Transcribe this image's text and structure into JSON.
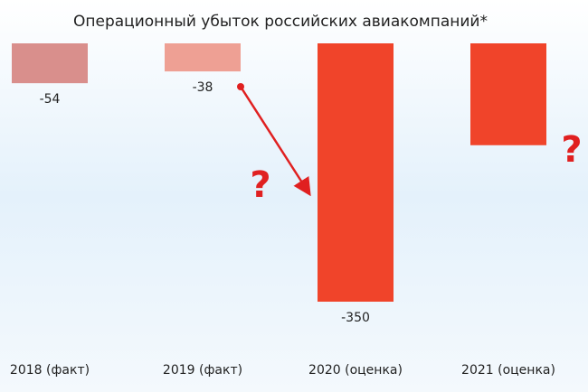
{
  "chart_data": {
    "type": "bar",
    "title": "Операционный убыток российских авиакомпаний*",
    "categories": [
      "2018 (факт)",
      "2019 (факт)",
      "2020 (оценка)",
      "2021 (оценка)"
    ],
    "values": [
      -54,
      -38,
      -350,
      -138
    ],
    "value_labels": [
      "-54",
      "-38",
      "-350",
      null
    ],
    "colors": [
      "#d98f8c",
      "#eea094",
      "#f0442a",
      "#f0442a"
    ],
    "ylim": [
      -350,
      0
    ],
    "annotations": [
      "?",
      "?"
    ]
  }
}
